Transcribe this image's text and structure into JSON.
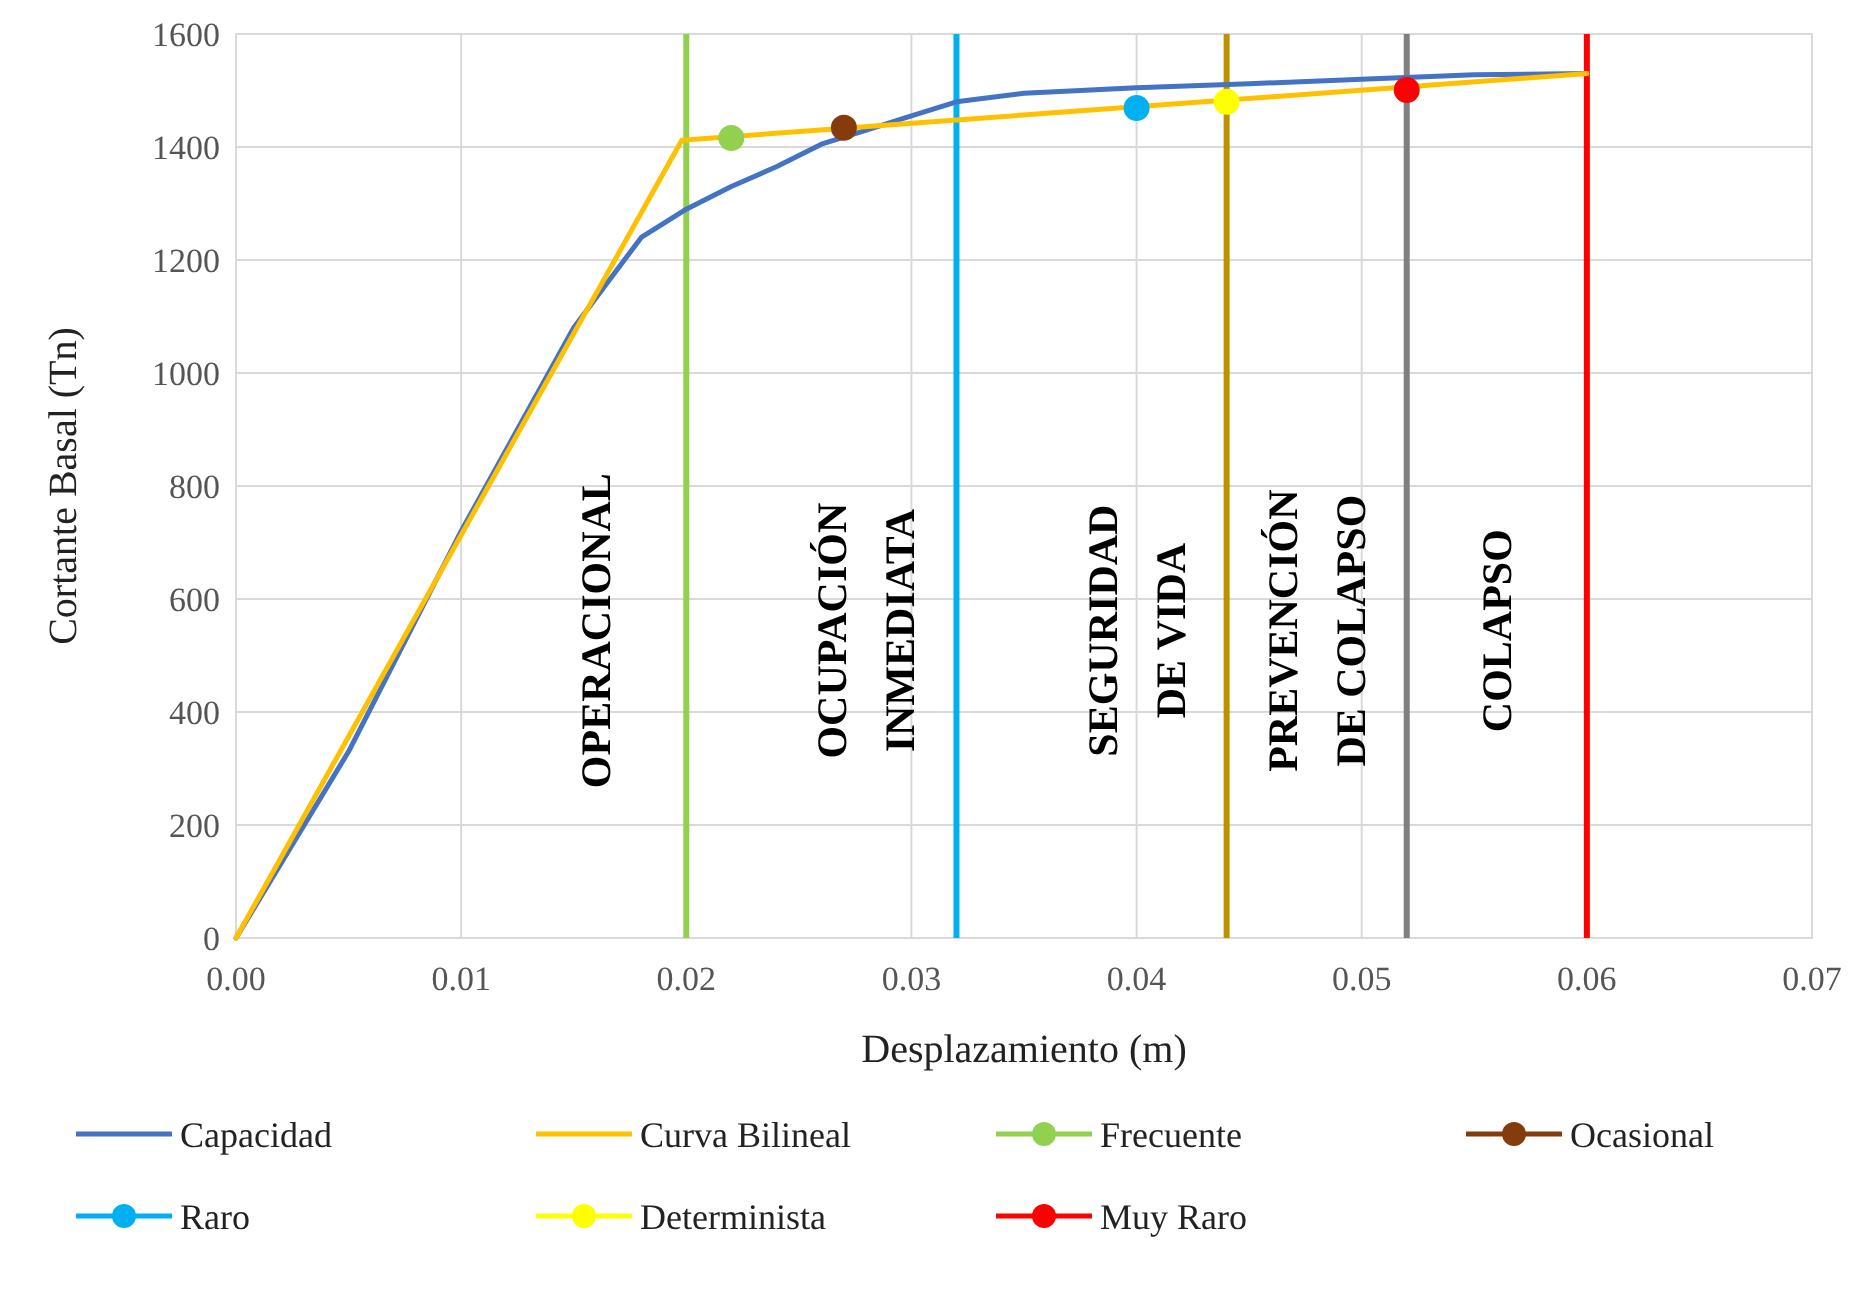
{
  "chart_data": {
    "type": "line",
    "xlabel": "Desplazamiento (m)",
    "ylabel": "Cortante Basal (Tn)",
    "xlim": [
      0,
      0.07
    ],
    "xticks": [
      {
        "value": 0,
        "label": "0.00"
      },
      {
        "value": 0.01,
        "label": "0.01"
      },
      {
        "value": 0.02,
        "label": "0.02"
      },
      {
        "value": 0.03,
        "label": "0.03"
      },
      {
        "value": 0.04,
        "label": "0.04"
      },
      {
        "value": 0.05,
        "label": "0.05"
      },
      {
        "value": 0.06,
        "label": "0.06"
      },
      {
        "value": 0.07,
        "label": "0.07"
      }
    ],
    "ylim": [
      0,
      1600
    ],
    "yticks": [
      0,
      200,
      400,
      600,
      800,
      1000,
      1200,
      1400,
      1600
    ],
    "grid": true,
    "legend": "bottom",
    "series": [
      {
        "name": "Capacidad",
        "color": "#4472c4",
        "x": [
          0,
          0.005,
          0.01,
          0.015,
          0.0165,
          0.018,
          0.02,
          0.022,
          0.024,
          0.026,
          0.028,
          0.03,
          0.032,
          0.035,
          0.04,
          0.045,
          0.05,
          0.055,
          0.06
        ],
        "values": [
          0,
          330,
          720,
          1080,
          1160,
          1240,
          1290,
          1330,
          1365,
          1405,
          1430,
          1455,
          1480,
          1495,
          1505,
          1512,
          1520,
          1528,
          1530
        ]
      },
      {
        "name": "Curva Bilineal",
        "color": "#ffc000",
        "x": [
          0,
          0.0198,
          0.06
        ],
        "values": [
          0,
          1412,
          1530
        ]
      },
      {
        "name": "Frecuente",
        "type": "scatter",
        "marker": "circle",
        "color": "#92d050",
        "x": [
          0.022
        ],
        "values": [
          1416
        ]
      },
      {
        "name": "Ocasional",
        "type": "scatter",
        "marker": "circle",
        "color": "#843c0c",
        "x": [
          0.027
        ],
        "values": [
          1434
        ]
      },
      {
        "name": "Raro",
        "type": "scatter",
        "marker": "circle",
        "color": "#00b0f0",
        "x": [
          0.04
        ],
        "values": [
          1469
        ]
      },
      {
        "name": "Determinista",
        "type": "scatter",
        "marker": "circle",
        "color": "#ffff00",
        "x": [
          0.044
        ],
        "values": [
          1480
        ]
      },
      {
        "name": "Muy Raro",
        "type": "scatter",
        "marker": "circle",
        "color": "#ff0000",
        "x": [
          0.052
        ],
        "values": [
          1501
        ]
      }
    ],
    "ref_lines": [
      {
        "axis": "x",
        "value": 0.02,
        "color": "#92d050"
      },
      {
        "axis": "x",
        "value": 0.032,
        "color": "#00b0f0"
      },
      {
        "axis": "x",
        "value": 0.044,
        "color": "#bf9000"
      },
      {
        "axis": "x",
        "value": 0.052,
        "color": "#808080"
      },
      {
        "axis": "x",
        "value": 0.06,
        "color": "#ff0000"
      }
    ],
    "annotations": [
      "OPERACIONAL",
      "OCUPACIÓN\nINMEDIATA",
      "SEGURIDAD\nDE VIDA",
      "PREVENCIÓN\nDE COLAPSO",
      "COLAPSO"
    ]
  }
}
